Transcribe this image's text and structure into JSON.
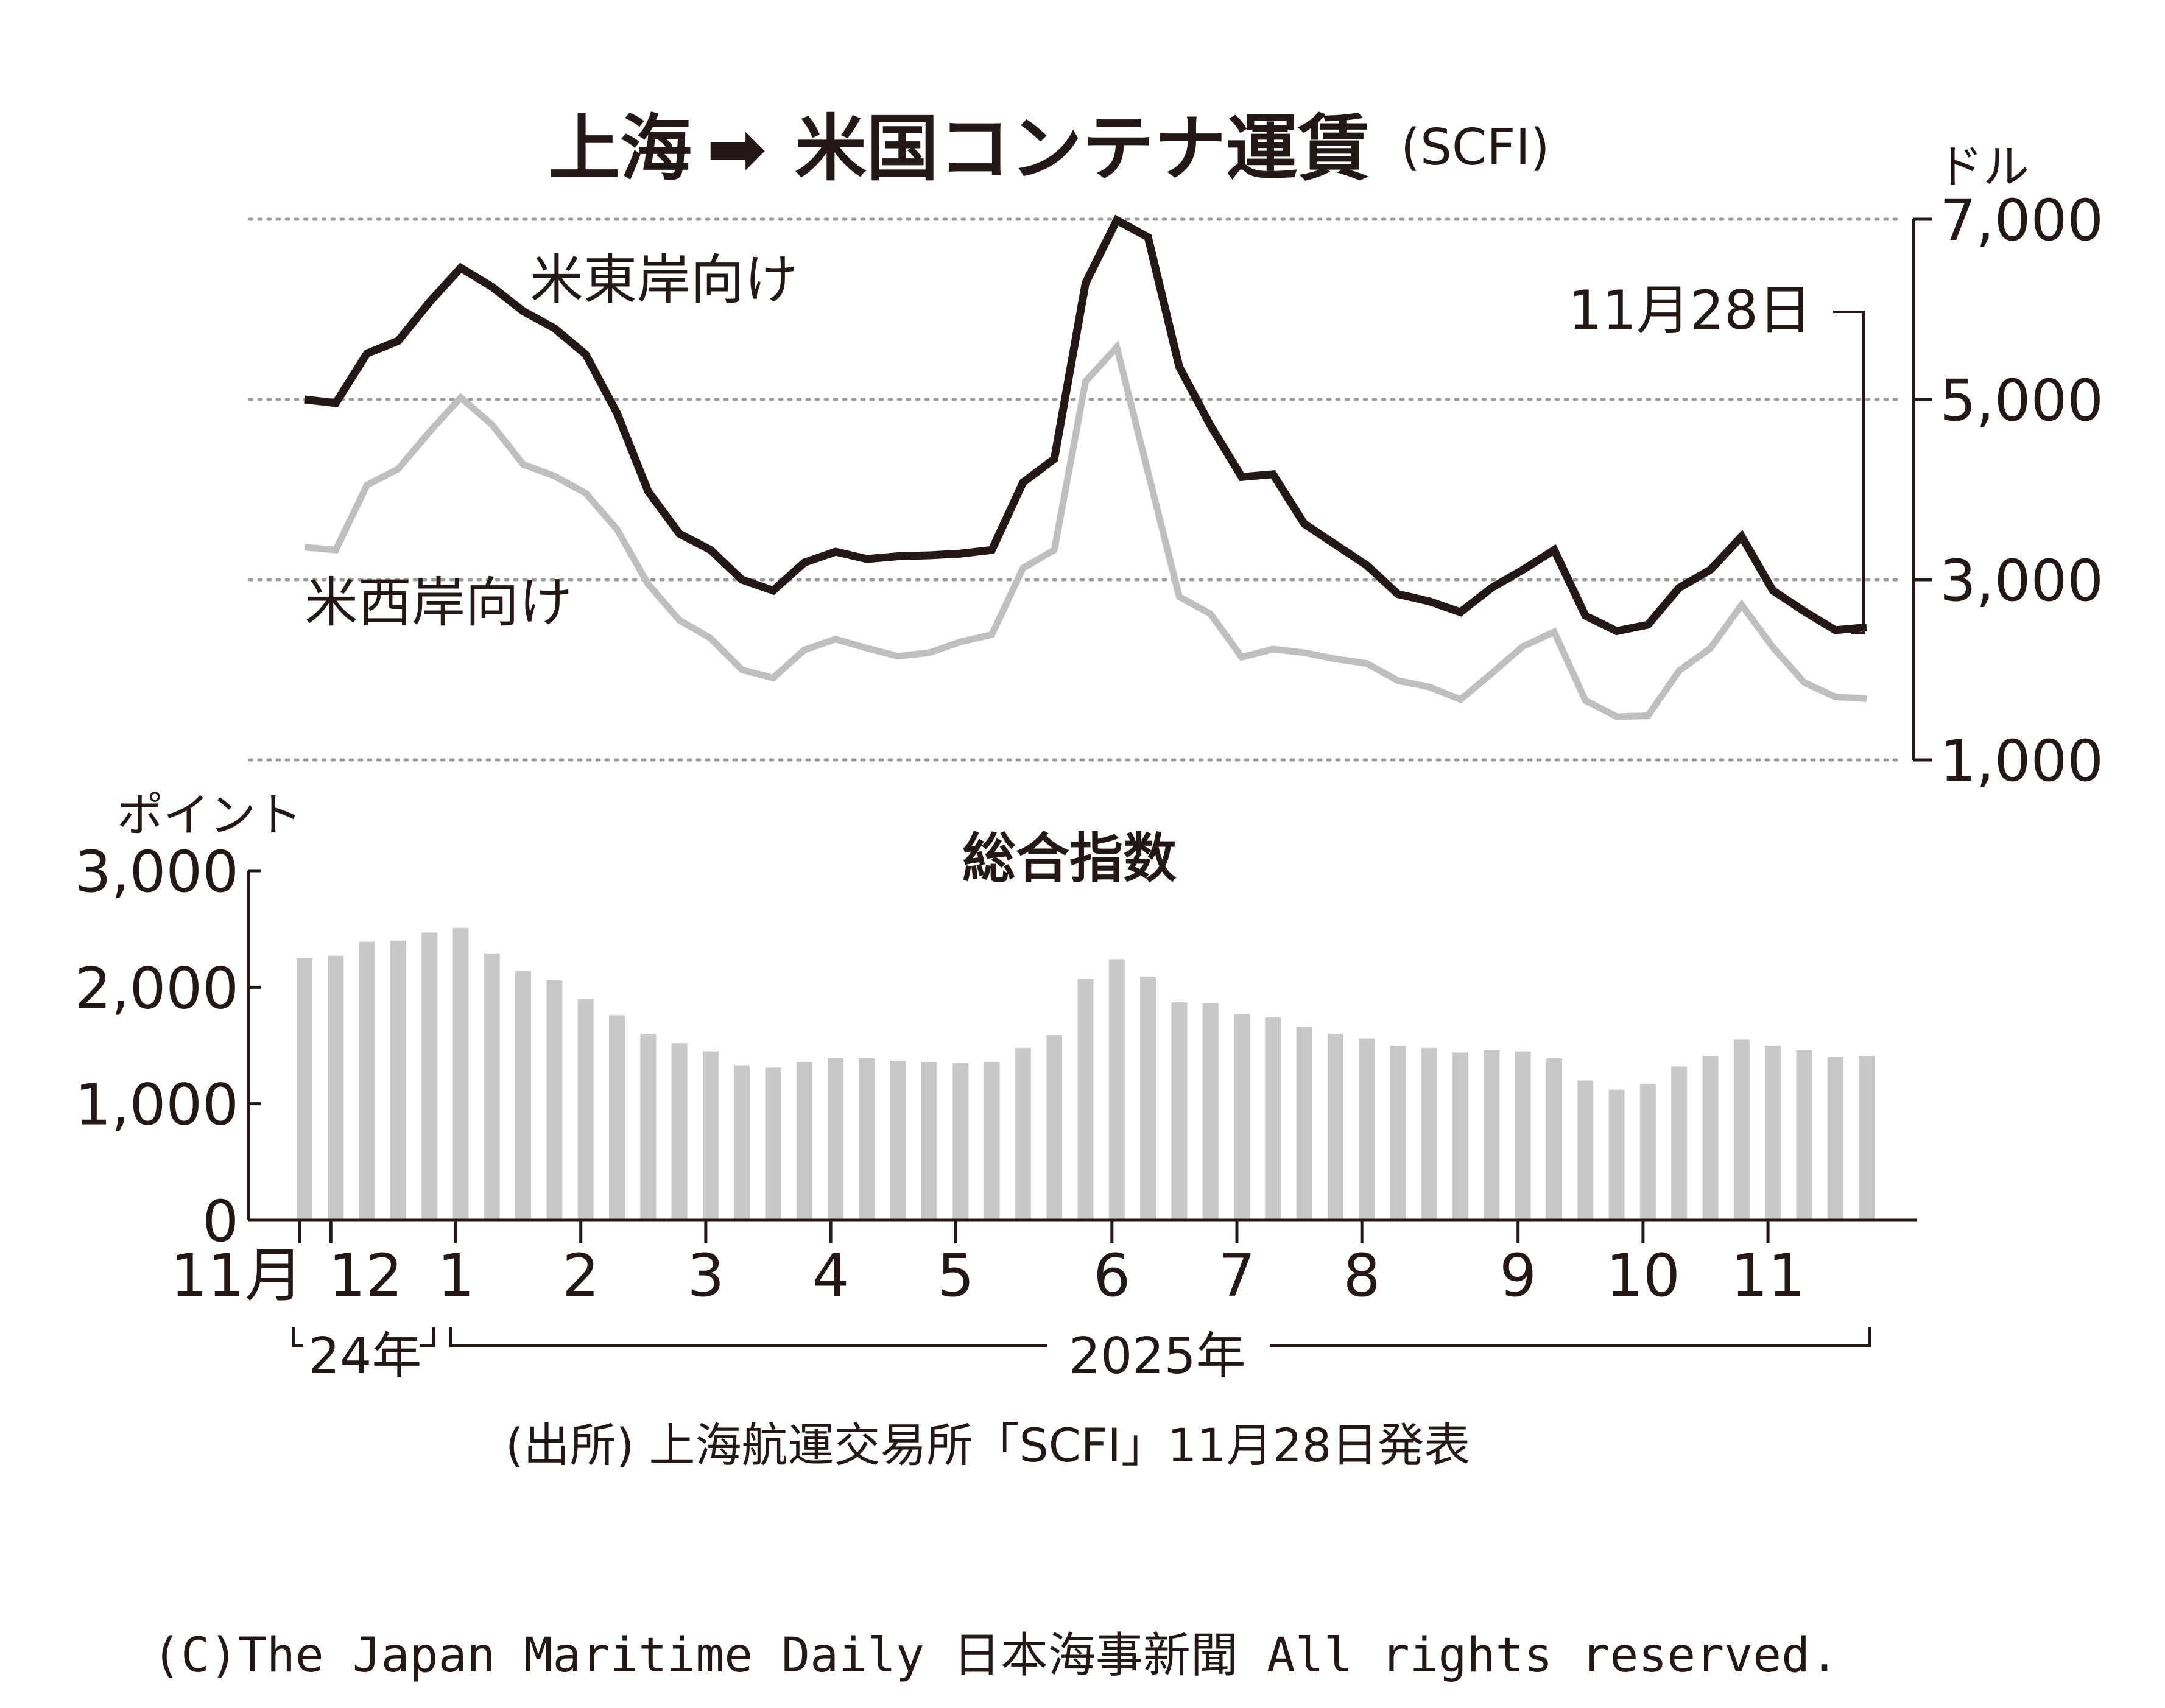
{
  "title": "上海",
  "title_arrow": "➡",
  "title_rest": "米国コンテナ運賃",
  "title_paren": "(SCFI)",
  "colors": {
    "east": "#231815",
    "west": "#bfbfbf",
    "bars": "#c8c8c8",
    "grid": "#9b9b9b",
    "text": "#231815"
  },
  "chart_data": [
    {
      "type": "line",
      "unit": "ドル",
      "ylim": [
        1000,
        7000
      ],
      "yticks": [
        1000,
        3000,
        5000,
        7000
      ],
      "ytick_labels": [
        "1,000",
        "3,000",
        "5,000",
        "7,000"
      ],
      "grid": true,
      "annotation": "11月28日",
      "series": [
        {
          "name": "米東岸向け",
          "values": [
            5000,
            4960,
            5510,
            5650,
            6080,
            6460,
            6250,
            5980,
            5790,
            5500,
            4850,
            3980,
            3510,
            3330,
            3000,
            2880,
            3190,
            3310,
            3230,
            3260,
            3270,
            3290,
            3330,
            4080,
            4340,
            6290,
            6990,
            6800,
            5360,
            4710,
            4140,
            4170,
            3620,
            3390,
            3160,
            2840,
            2760,
            2640,
            2910,
            3110,
            3330,
            2600,
            2430,
            2500,
            2910,
            3110,
            3480,
            2880,
            2650,
            2440,
            2470
          ]
        },
        {
          "name": "米西岸向け",
          "values": [
            3360,
            3330,
            4050,
            4230,
            4640,
            5020,
            4720,
            4280,
            4150,
            3960,
            3560,
            2950,
            2550,
            2350,
            2000,
            1910,
            2220,
            2340,
            2240,
            2150,
            2190,
            2310,
            2390,
            3130,
            3330,
            5200,
            5580,
            4190,
            2810,
            2620,
            2140,
            2230,
            2190,
            2120,
            2070,
            1880,
            1810,
            1670,
            1960,
            2260,
            2420,
            1660,
            1480,
            1490,
            1990,
            2240,
            2720,
            2250,
            1860,
            1700,
            1680
          ]
        }
      ],
      "labels": {
        "east": "米東岸向け",
        "west": "米西岸向け"
      }
    },
    {
      "type": "bar",
      "title": "総合指数",
      "unit": "ポイント",
      "ylim": [
        0,
        3000
      ],
      "yticks": [
        0,
        1000,
        2000,
        3000
      ],
      "ytick_labels": [
        "0",
        "1,000",
        "2,000",
        "3,000"
      ],
      "values": [
        2250,
        2270,
        2390,
        2400,
        2470,
        2510,
        2290,
        2140,
        2060,
        1900,
        1760,
        1600,
        1520,
        1450,
        1330,
        1310,
        1360,
        1390,
        1390,
        1370,
        1360,
        1350,
        1360,
        1480,
        1590,
        2070,
        2240,
        2090,
        1870,
        1860,
        1770,
        1740,
        1660,
        1600,
        1560,
        1500,
        1480,
        1440,
        1460,
        1450,
        1390,
        1200,
        1120,
        1170,
        1320,
        1410,
        1550,
        1500,
        1460,
        1400,
        1410
      ]
    }
  ],
  "x_axis": {
    "month_labels": [
      "11月",
      "12",
      "1",
      "2",
      "3",
      "4",
      "5",
      "6",
      "7",
      "8",
      "9",
      "10",
      "11"
    ],
    "year_labels": [
      "24年",
      "2025年"
    ]
  },
  "source": "(出所) 上海航運交易所「SCFI」11月28日発表",
  "copyright": "(C)The Japan Maritime Daily 日本海事新聞 All rights reserved."
}
